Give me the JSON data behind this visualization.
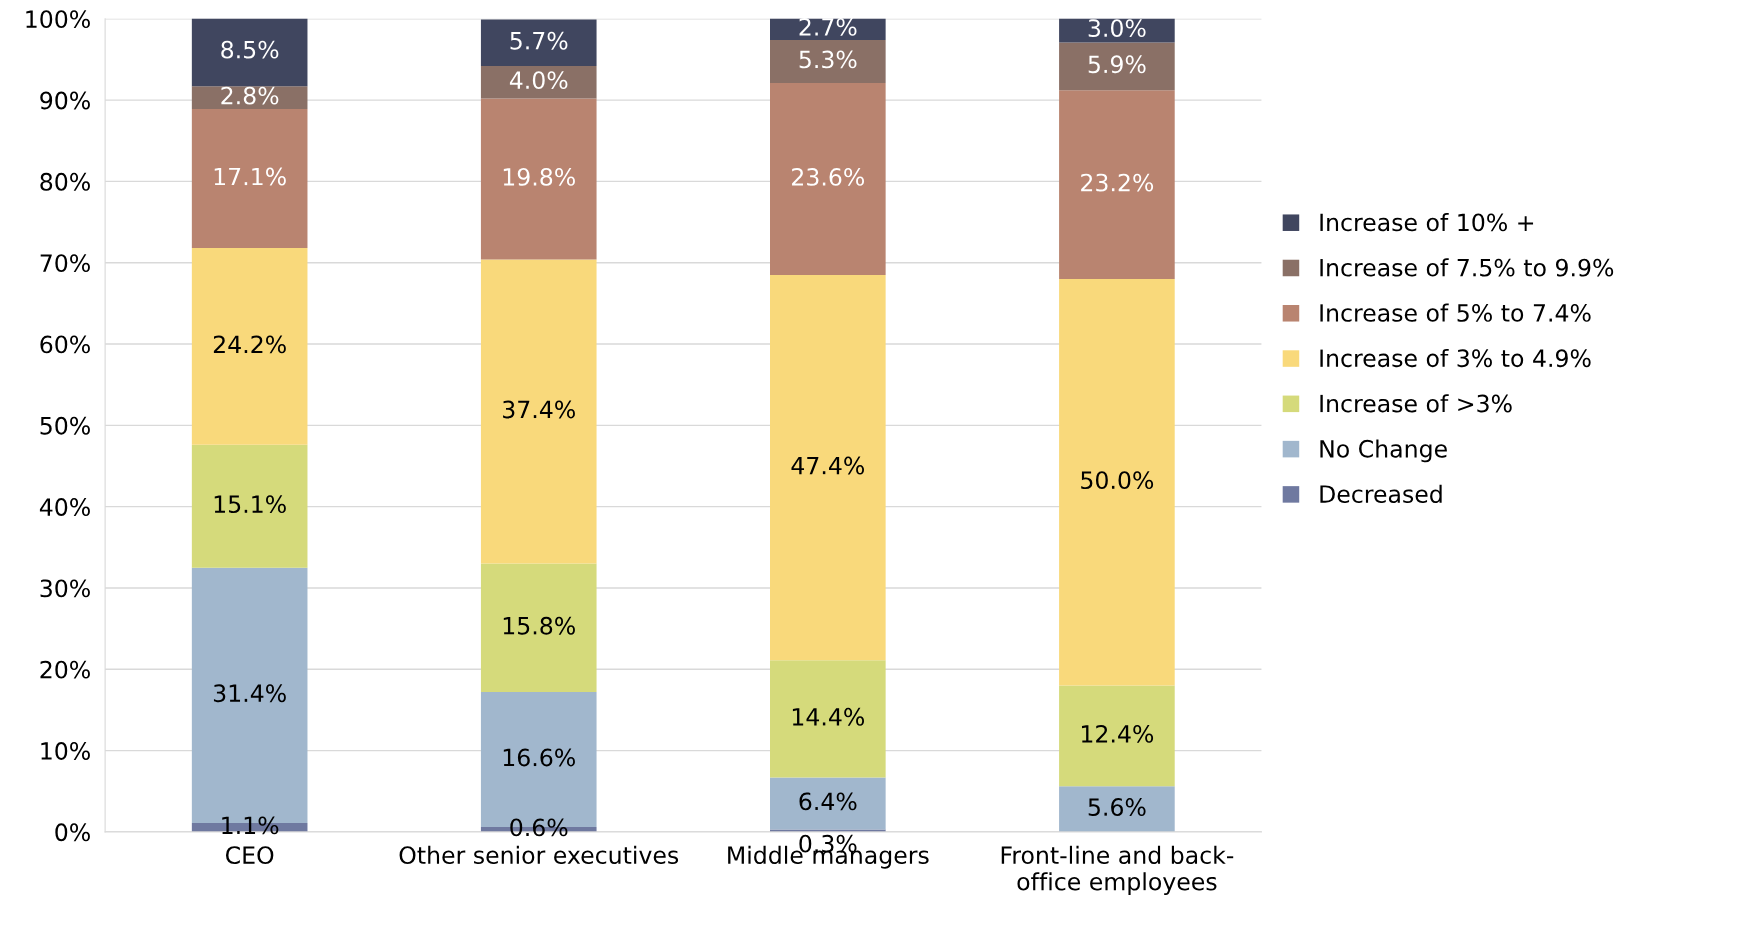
{
  "chart_data": {
    "type": "bar",
    "stacked": true,
    "categories": [
      "CEO",
      "Other senior executives",
      "Middle managers",
      "Front-line and back-\noffice employees"
    ],
    "series": [
      {
        "name": "Decreased",
        "color": "#6f79a0",
        "values": [
          1.1,
          0.6,
          0.3,
          null
        ],
        "value_labels": [
          "1.1%",
          "0.6%",
          "0.3%",
          null
        ]
      },
      {
        "name": "No Change",
        "color": "#a1b7cd",
        "values": [
          31.4,
          16.6,
          6.4,
          5.6
        ],
        "value_labels": [
          "31.4%",
          "16.6%",
          "6.4%",
          "5.6%"
        ]
      },
      {
        "name": "Increase of >3%",
        "color": "#d5da7b",
        "values": [
          15.1,
          15.8,
          14.4,
          12.4
        ],
        "value_labels": [
          "15.1%",
          "15.8%",
          "14.4%",
          "12.4%"
        ]
      },
      {
        "name": "Increase of 3% to 4.9%",
        "color": "#f9d97b",
        "values": [
          24.2,
          37.4,
          47.4,
          50.0
        ],
        "value_labels": [
          "24.2%",
          "37.4%",
          "47.4%",
          "50.0%"
        ]
      },
      {
        "name": "Increase of 5% to 7.4%",
        "color": "#b98470",
        "values": [
          17.1,
          19.8,
          23.6,
          23.2
        ],
        "value_labels": [
          "17.1%",
          "19.8%",
          "23.6%",
          "23.2%"
        ]
      },
      {
        "name": "Increase of 7.5% to 9.9%",
        "color": "#8a7066",
        "values": [
          2.8,
          4.0,
          5.3,
          5.9
        ],
        "value_labels": [
          "2.8%",
          "4.0%",
          "5.3%",
          "5.9%"
        ]
      },
      {
        "name": "Increase of 10% +",
        "color": "#40465f",
        "values": [
          8.5,
          5.7,
          2.7,
          3.0
        ],
        "value_labels": [
          "8.5%",
          "5.7%",
          "2.7%",
          "3.0%"
        ]
      }
    ],
    "ylim": [
      0,
      100
    ],
    "yticks": [
      {
        "value": 0,
        "label": "0%"
      },
      {
        "value": 10,
        "label": "10%"
      },
      {
        "value": 20,
        "label": "20%"
      },
      {
        "value": 30,
        "label": "30%"
      },
      {
        "value": 40,
        "label": "40%"
      },
      {
        "value": 50,
        "label": "50%"
      },
      {
        "value": 60,
        "label": "60%"
      },
      {
        "value": 70,
        "label": "70%"
      },
      {
        "value": 80,
        "label": "80%"
      },
      {
        "value": 90,
        "label": "90%"
      },
      {
        "value": 100,
        "label": "100%"
      }
    ],
    "grid": "y",
    "legend": "right"
  }
}
